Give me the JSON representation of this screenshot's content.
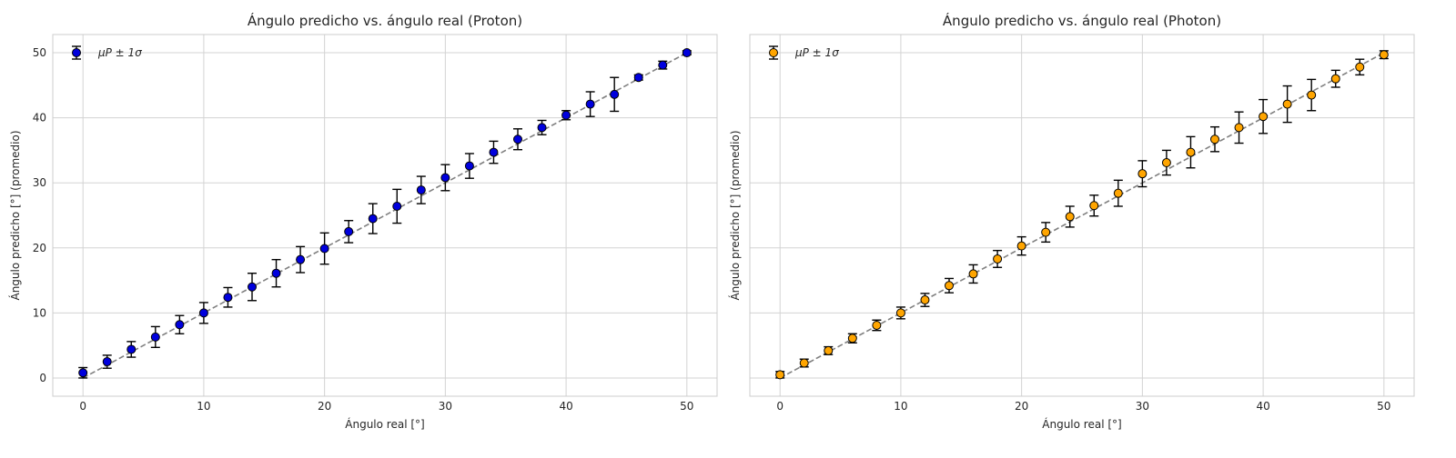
{
  "chart_data": [
    {
      "type": "scatter",
      "title": "Ángulo predicho vs. ángulo real (Proton)",
      "xlabel": "Ángulo real [°]",
      "ylabel": "Ángulo predicho [°] (promedio)",
      "xlim": [
        -2.5,
        52.5
      ],
      "ylim": [
        -2.8,
        52.8
      ],
      "xticks": [
        0,
        10,
        20,
        30,
        40,
        50
      ],
      "yticks": [
        0,
        10,
        20,
        30,
        40,
        50
      ],
      "xtick_labels": [
        "0",
        "10",
        "20",
        "30",
        "40",
        "50"
      ],
      "ytick_labels": [
        "0",
        "10",
        "20",
        "30",
        "40",
        "50"
      ],
      "grid": true,
      "legend": {
        "position": "top-left",
        "label": "μP ± 1σ"
      },
      "marker_color": "#0000dd",
      "reference_line": {
        "from": [
          0,
          0
        ],
        "to": [
          50,
          50
        ],
        "style": "dashed",
        "color": "#808080"
      },
      "series": [
        {
          "name": "μP ± 1σ",
          "x": [
            0,
            2,
            4,
            6,
            8,
            10,
            12,
            14,
            16,
            18,
            20,
            22,
            24,
            26,
            28,
            30,
            32,
            34,
            36,
            38,
            40,
            42,
            44,
            46,
            48,
            50
          ],
          "y": [
            0.8,
            2.5,
            4.4,
            6.3,
            8.2,
            10.0,
            12.4,
            14.0,
            16.1,
            18.2,
            19.9,
            22.5,
            24.5,
            26.4,
            28.9,
            30.8,
            32.6,
            34.7,
            36.7,
            38.5,
            40.4,
            42.1,
            43.6,
            46.2,
            48.1,
            50.0
          ],
          "err": [
            0.8,
            1.0,
            1.2,
            1.6,
            1.4,
            1.6,
            1.5,
            2.1,
            2.1,
            2.0,
            2.4,
            1.7,
            2.3,
            2.6,
            2.1,
            2.0,
            1.9,
            1.7,
            1.6,
            1.1,
            0.7,
            1.9,
            2.6,
            0.4,
            0.6,
            0.3
          ]
        }
      ]
    },
    {
      "type": "scatter",
      "title": "Ángulo predicho vs. ángulo real (Photon)",
      "xlabel": "Ángulo real [°]",
      "ylabel": "Ángulo predicho [°] (promedio)",
      "xlim": [
        -2.5,
        52.5
      ],
      "ylim": [
        -2.8,
        52.8
      ],
      "xticks": [
        0,
        10,
        20,
        30,
        40,
        50
      ],
      "yticks": [
        0,
        10,
        20,
        30,
        40,
        50
      ],
      "xtick_labels": [
        "0",
        "10",
        "20",
        "30",
        "40",
        "50"
      ],
      "ytick_labels": [],
      "grid": true,
      "legend": {
        "position": "top-left",
        "label": "μP ± 1σ"
      },
      "marker_color": "#ffa500",
      "reference_line": {
        "from": [
          0,
          0
        ],
        "to": [
          50,
          50
        ],
        "style": "dashed",
        "color": "#808080"
      },
      "series": [
        {
          "name": "μP ± 1σ",
          "x": [
            0,
            2,
            4,
            6,
            8,
            10,
            12,
            14,
            16,
            18,
            20,
            22,
            24,
            26,
            28,
            30,
            32,
            34,
            36,
            38,
            40,
            42,
            44,
            46,
            48,
            50
          ],
          "y": [
            0.5,
            2.3,
            4.2,
            6.1,
            8.1,
            10.0,
            12.0,
            14.2,
            16.0,
            18.3,
            20.3,
            22.4,
            24.8,
            26.5,
            28.4,
            31.4,
            33.1,
            34.7,
            36.7,
            38.5,
            40.2,
            42.1,
            43.5,
            46.0,
            47.8,
            49.7
          ],
          "err": [
            0.5,
            0.6,
            0.6,
            0.7,
            0.8,
            0.9,
            1.0,
            1.1,
            1.4,
            1.3,
            1.4,
            1.5,
            1.6,
            1.6,
            2.0,
            2.0,
            1.9,
            2.4,
            1.9,
            2.4,
            2.6,
            2.8,
            2.4,
            1.3,
            1.2,
            0.6
          ]
        }
      ]
    }
  ]
}
